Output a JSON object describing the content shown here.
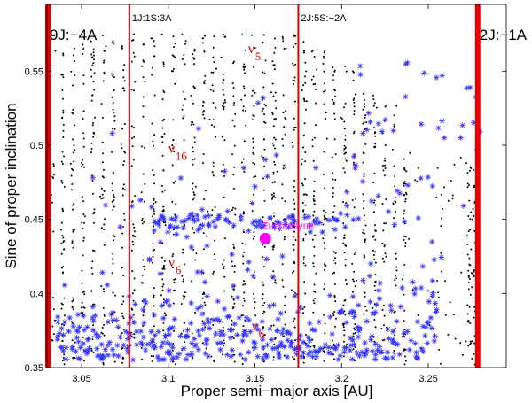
{
  "chart_data": {
    "type": "scatter",
    "xlabel": "Proper semi−major axis [AU]",
    "ylabel": "Sine of proper inclination",
    "xlim": [
      3.03,
      3.295
    ],
    "ylim": [
      0.35,
      0.595
    ],
    "x_ticks": [
      3.05,
      3.1,
      3.15,
      3.2,
      3.25
    ],
    "x_tick_labels": [
      "3.05",
      "3.1",
      "3.15",
      "3.2",
      "3.25"
    ],
    "y_ticks": [
      0.35,
      0.4,
      0.45,
      0.5,
      0.55
    ],
    "y_tick_labels": [
      "0.35",
      "0.4",
      "0.45",
      "0.5",
      "0.55"
    ],
    "grid": false,
    "colors": {
      "background_asteroids": "#000000",
      "family_members": "#3333ff",
      "resonance_lines": "#e00000",
      "secular_labels": "#e00000",
      "family_center": "#ff00ff"
    },
    "resonances": [
      {
        "label": "9J:−4A",
        "a": 3.0305,
        "width": "thick",
        "label_size": "large"
      },
      {
        "label": "1J:1S:3A",
        "a": 3.0775,
        "width": "thin",
        "label_size": "small"
      },
      {
        "label": "2J:5S:−2A",
        "a": 3.175,
        "width": "thin",
        "label_size": "small"
      },
      {
        "label": "2J:−1A",
        "a": 3.2785,
        "width": "thick",
        "label_size": "large"
      }
    ],
    "secular_resonances": [
      {
        "symbol": "ν",
        "subscript": "5",
        "a": 3.146,
        "sin_i": 0.562
      },
      {
        "symbol": "ν",
        "subscript": "16",
        "a": 3.1,
        "sin_i": 0.495
      },
      {
        "symbol": "ν",
        "subscript": "6",
        "a": 3.1,
        "sin_i": 0.418
      },
      {
        "symbol": "ν",
        "subscript": "6",
        "a": 3.148,
        "sin_i": 0.375
      }
    ],
    "family_center": {
      "label": "Euphrosyne",
      "a": 3.156,
      "sin_i": 0.437
    },
    "series": [
      {
        "name": "background",
        "marker": "dot"
      },
      {
        "name": "family",
        "marker": "asterisk"
      }
    ]
  }
}
